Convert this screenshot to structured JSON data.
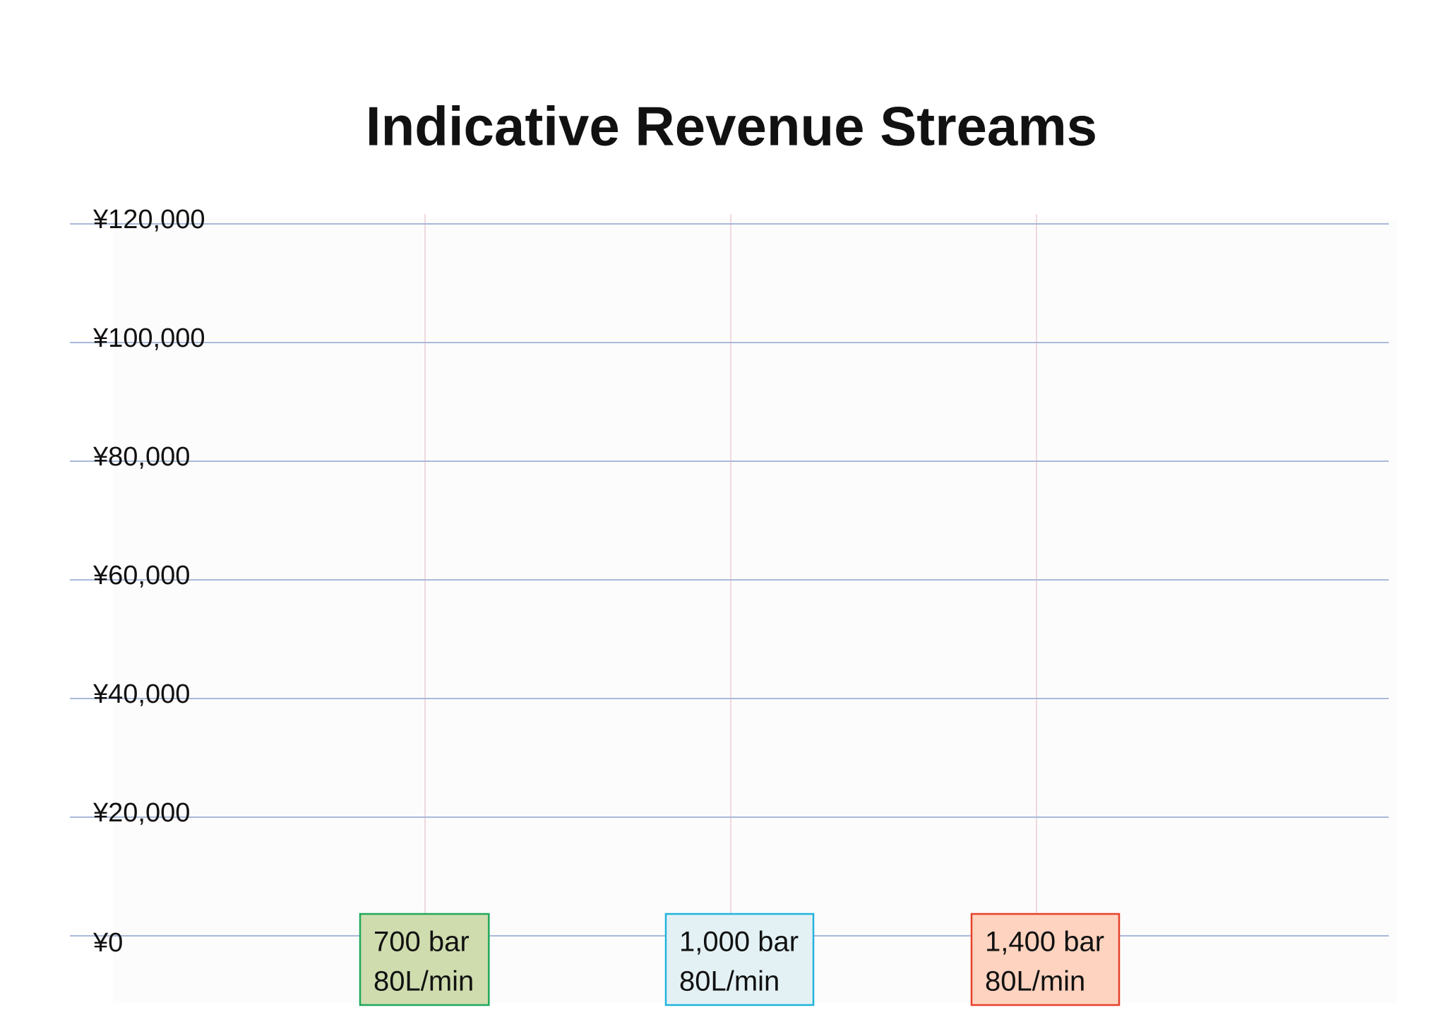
{
  "chart_data": {
    "type": "bar",
    "title": "Indicative Revenue Streams",
    "categories": [
      [
        "700 bar",
        "80L/min"
      ],
      [
        "1,000 bar",
        "80L/min"
      ],
      [
        "1,400 bar",
        "80L/min"
      ]
    ],
    "category_colors": [
      {
        "fill": "#cfdcae",
        "border": "#1fa85a"
      },
      {
        "fill": "#e3f1f4",
        "border": "#1fb3dc"
      },
      {
        "fill": "#fed3bf",
        "border": "#e6402a"
      }
    ],
    "ylim": [
      0,
      120000
    ],
    "yticks": [
      {
        "value": 0,
        "label": "¥0"
      },
      {
        "value": 20000,
        "label": "¥20,000"
      },
      {
        "value": 40000,
        "label": "¥40,000"
      },
      {
        "value": 60000,
        "label": "¥60,000"
      },
      {
        "value": 80000,
        "label": "¥80,000"
      },
      {
        "value": 100000,
        "label": "¥100,000"
      },
      {
        "value": 120000,
        "label": "¥120,000"
      }
    ],
    "grid": true
  }
}
